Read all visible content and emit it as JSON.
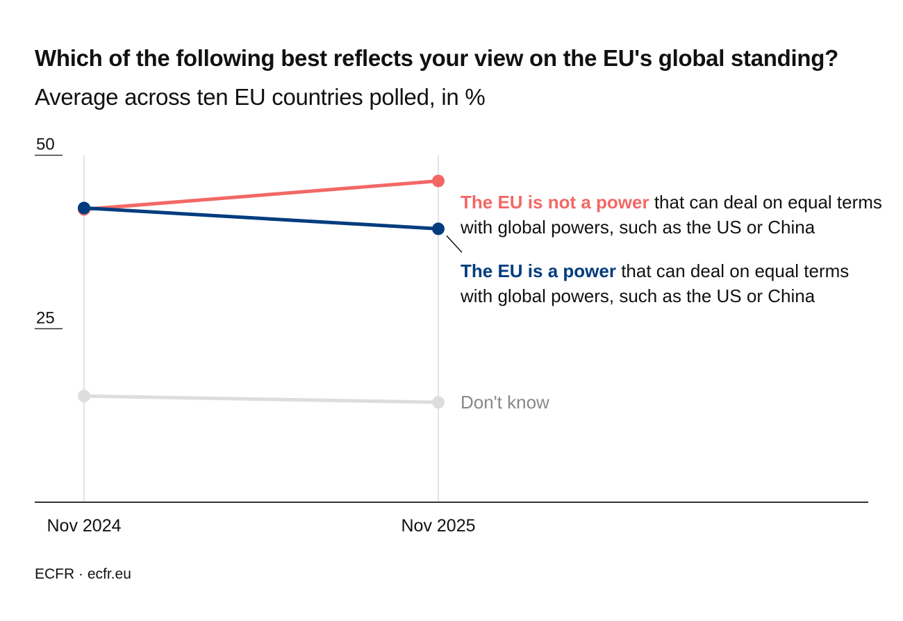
{
  "title": {
    "bold": "Which of the following best reflects your view on the EU's global standing?",
    "regular": "Average across ten EU countries polled, in %"
  },
  "chart_data": {
    "type": "line",
    "categories": [
      "Nov 2024",
      "Nov 2025"
    ],
    "ylim": [
      0,
      50
    ],
    "yticks": [
      25,
      50
    ],
    "grid": "vertical at categories",
    "series": [
      {
        "key": "not_power",
        "values": [
          42.2,
          46.3
        ],
        "color": "#f26866",
        "label_bold": "The EU is not a power",
        "label_rest": "that can deal on equal terms with global powers, such as the US or China"
      },
      {
        "key": "power",
        "values": [
          42.4,
          39.4
        ],
        "color": "#003c7e",
        "label_bold": "The EU is a power",
        "label_rest": "that can deal on equal terms with global powers, such as the US or China"
      },
      {
        "key": "dont_know",
        "values": [
          15.3,
          14.4
        ],
        "color": "#dddddd",
        "label_bold": "",
        "label_rest": "Don't know"
      }
    ]
  },
  "source": "ECFR · ecfr.eu"
}
